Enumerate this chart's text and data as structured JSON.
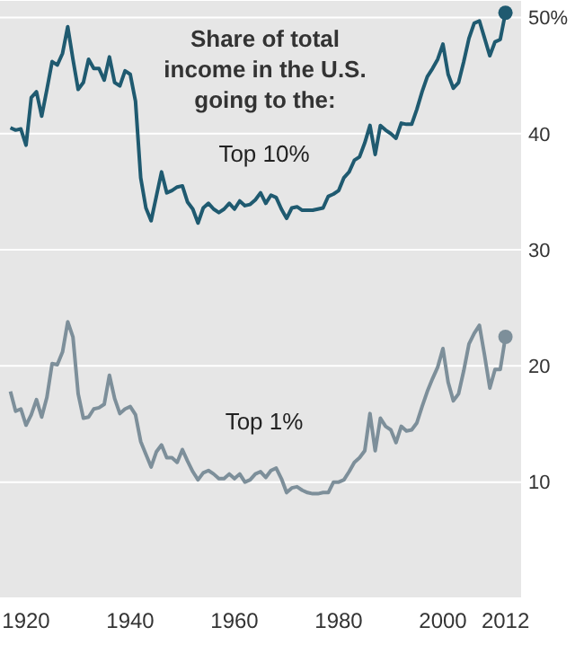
{
  "chart_data": {
    "type": "line",
    "title": "Share of total income in the U.S. going to the:",
    "x": [
      1917,
      1918,
      1919,
      1920,
      1921,
      1922,
      1923,
      1924,
      1925,
      1926,
      1927,
      1928,
      1929,
      1930,
      1931,
      1932,
      1933,
      1934,
      1935,
      1936,
      1937,
      1938,
      1939,
      1940,
      1941,
      1942,
      1943,
      1944,
      1945,
      1946,
      1947,
      1948,
      1949,
      1950,
      1951,
      1952,
      1953,
      1954,
      1955,
      1956,
      1957,
      1958,
      1959,
      1960,
      1961,
      1962,
      1963,
      1964,
      1965,
      1966,
      1967,
      1968,
      1969,
      1970,
      1971,
      1972,
      1973,
      1974,
      1975,
      1976,
      1977,
      1978,
      1979,
      1980,
      1981,
      1982,
      1983,
      1984,
      1985,
      1986,
      1987,
      1988,
      1989,
      1990,
      1991,
      1992,
      1993,
      1994,
      1995,
      1996,
      1997,
      1998,
      1999,
      2000,
      2001,
      2002,
      2003,
      2004,
      2005,
      2006,
      2007,
      2008,
      2009,
      2010,
      2011,
      2012
    ],
    "series": [
      {
        "name": "Top 10%",
        "color": "#1f5a70",
        "values": [
          40.5,
          40.3,
          40.4,
          39.0,
          43.1,
          43.6,
          41.5,
          43.8,
          46.2,
          45.9,
          46.9,
          49.2,
          46.4,
          43.8,
          44.4,
          46.4,
          45.6,
          45.6,
          44.6,
          46.6,
          44.4,
          44.1,
          45.4,
          45.1,
          42.8,
          36.2,
          33.6,
          32.5,
          34.6,
          36.7,
          34.9,
          35.1,
          35.4,
          35.5,
          34.1,
          33.5,
          32.3,
          33.6,
          34.0,
          33.5,
          33.2,
          33.5,
          34.0,
          33.5,
          34.2,
          33.8,
          33.9,
          34.3,
          34.9,
          34.0,
          34.7,
          34.5,
          33.5,
          32.7,
          33.6,
          33.7,
          33.4,
          33.4,
          33.4,
          33.5,
          33.6,
          34.6,
          34.8,
          35.1,
          36.2,
          36.7,
          37.7,
          38.0,
          39.2,
          40.7,
          38.2,
          40.7,
          40.3,
          40.0,
          39.6,
          40.9,
          40.8,
          40.8,
          42.1,
          43.6,
          44.9,
          45.6,
          46.4,
          47.7,
          45.1,
          43.9,
          44.4,
          46.2,
          48.2,
          49.5,
          49.7,
          48.2,
          46.7,
          47.9,
          48.1,
          50.4
        ]
      },
      {
        "name": "Top 1%",
        "color": "#7d8f9a",
        "values": [
          17.8,
          16.1,
          16.3,
          14.9,
          15.8,
          17.1,
          15.6,
          17.3,
          20.2,
          20.1,
          21.2,
          23.8,
          22.5,
          17.6,
          15.5,
          15.6,
          16.3,
          16.4,
          16.7,
          19.2,
          17.2,
          15.9,
          16.3,
          16.5,
          15.8,
          13.5,
          12.4,
          11.3,
          12.6,
          13.2,
          12.1,
          12.1,
          11.7,
          12.8,
          11.8,
          10.9,
          10.2,
          10.8,
          11.0,
          10.7,
          10.3,
          10.3,
          10.7,
          10.3,
          10.7,
          10.0,
          10.2,
          10.7,
          10.9,
          10.4,
          11.0,
          11.2,
          10.3,
          9.1,
          9.5,
          9.6,
          9.3,
          9.1,
          9.0,
          9.0,
          9.1,
          9.1,
          10.0,
          10.0,
          10.2,
          10.9,
          11.7,
          12.1,
          12.7,
          15.9,
          12.7,
          15.5,
          14.8,
          14.5,
          13.4,
          14.8,
          14.4,
          14.5,
          15.1,
          16.5,
          17.8,
          18.9,
          19.9,
          21.5,
          18.6,
          17.0,
          17.6,
          19.6,
          21.9,
          22.8,
          23.5,
          20.9,
          18.1,
          19.7,
          19.7,
          22.5
        ]
      }
    ],
    "xlim": [
      1915,
      2015
    ],
    "xticks": [
      1920,
      1940,
      1960,
      1980,
      2000,
      2012
    ],
    "ylim": [
      0,
      51.5
    ],
    "yticks": [
      10,
      20,
      30,
      40,
      {
        "value": 50,
        "label": "50%"
      }
    ],
    "grid": "y",
    "marker": "none",
    "line_style": "solid"
  }
}
